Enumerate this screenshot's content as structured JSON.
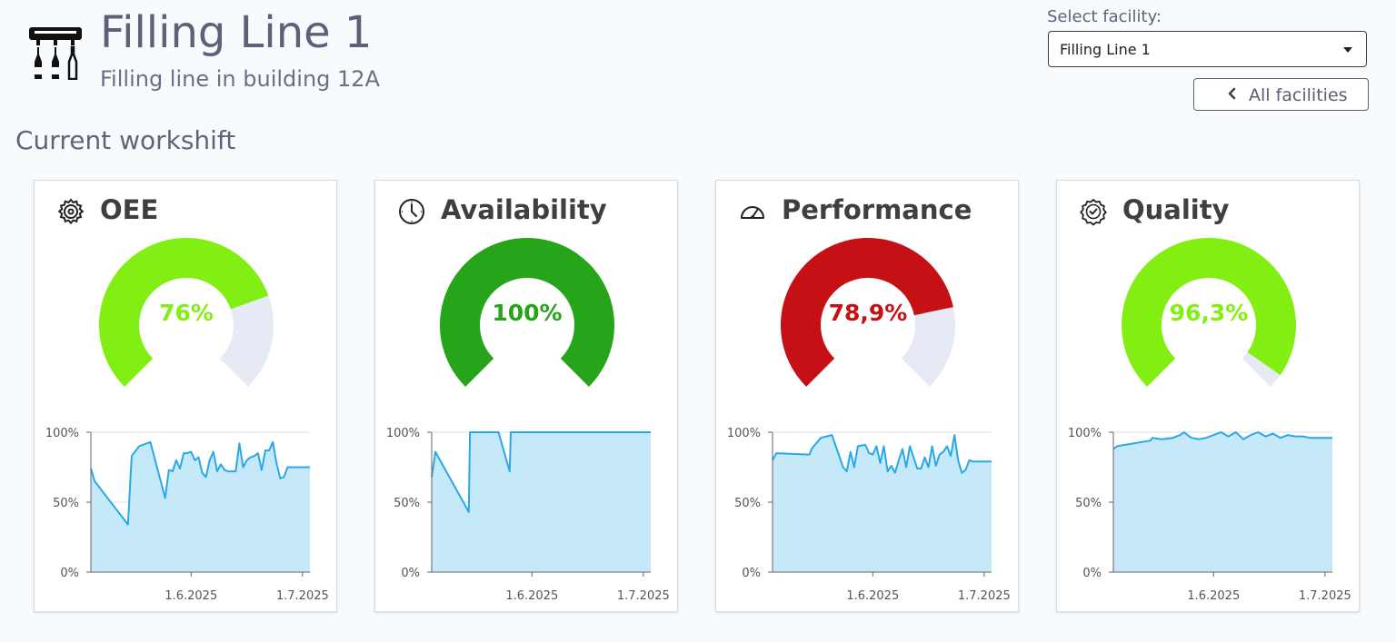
{
  "header": {
    "title": "Filling Line 1",
    "subtitle": "Filling line in building 12A",
    "icon": "filling-line-icon"
  },
  "facility_select": {
    "label": "Select facility:",
    "value": "Filling Line 1"
  },
  "back_button": {
    "label": "All facilities",
    "icon": "chevron-left-icon"
  },
  "section": {
    "title": "Current workshift"
  },
  "cards": [
    {
      "title": "OEE",
      "icon": "gear-icon",
      "value_text": "76%",
      "value": 0.76,
      "color": "#82ef14",
      "track": "#e5eaf5"
    },
    {
      "title": "Availability",
      "icon": "clock-icon",
      "value_text": "100%",
      "value": 1.0,
      "color": "#26a41a",
      "track": "#e5eaf5"
    },
    {
      "title": "Performance",
      "icon": "speedometer-icon",
      "value_text": "78,9%",
      "value": 0.789,
      "color": "#c51015",
      "track": "#e5eaf5"
    },
    {
      "title": "Quality",
      "icon": "badge-check-icon",
      "value_text": "96,3%",
      "value": 0.963,
      "color": "#83ee12",
      "track": "#e5eaf5"
    }
  ],
  "chart_data": [
    {
      "type": "area",
      "title": "OEE",
      "y_ticks": [
        "100%",
        "50%",
        "0%"
      ],
      "x_ticks": [
        {
          "label": "1.6.2025",
          "x": 28
        },
        {
          "label": "1.7.2025",
          "x": 58
        }
      ],
      "ylim": [
        0,
        100
      ],
      "xlim": [
        1,
        60
      ],
      "line_color": "#29a8e8",
      "fill_color": "#c6e9fa",
      "x": [
        1,
        2,
        11,
        12,
        14,
        17,
        21,
        22,
        23,
        24,
        25,
        26,
        27,
        28,
        29,
        30,
        31,
        32,
        33,
        34,
        35,
        36,
        37,
        38,
        39,
        40,
        41,
        42,
        43,
        44,
        45,
        46,
        47,
        48,
        49,
        50,
        51,
        52,
        53,
        54,
        55,
        56,
        57,
        58,
        59,
        60
      ],
      "y": [
        74,
        65,
        34,
        83,
        90,
        93,
        53,
        73,
        72,
        80,
        74,
        85,
        85,
        86,
        80,
        82,
        71,
        68,
        80,
        86,
        72,
        77,
        73,
        72,
        72,
        72,
        92,
        75,
        80,
        82,
        83,
        85,
        73,
        87,
        87,
        93,
        78,
        67,
        68,
        75,
        75,
        75,
        75,
        75,
        75,
        75
      ]
    },
    {
      "type": "area",
      "title": "Availability",
      "y_ticks": [
        "100%",
        "50%",
        "0%"
      ],
      "x_ticks": [
        {
          "label": "1.6.2025",
          "x": 28
        },
        {
          "label": "1.7.2025",
          "x": 58
        }
      ],
      "ylim": [
        0,
        100
      ],
      "xlim": [
        1,
        60
      ],
      "line_color": "#29a8e8",
      "fill_color": "#c6e9fa",
      "x": [
        1,
        2,
        11,
        11.3,
        19,
        22,
        22.3,
        60
      ],
      "y": [
        68,
        86,
        43,
        100,
        100,
        72,
        100,
        100
      ]
    },
    {
      "type": "area",
      "title": "Performance",
      "y_ticks": [
        "100%",
        "50%",
        "0%"
      ],
      "x_ticks": [
        {
          "label": "1.6.2025",
          "x": 28
        },
        {
          "label": "1.7.2025",
          "x": 58
        }
      ],
      "ylim": [
        0,
        100
      ],
      "xlim": [
        1,
        60
      ],
      "line_color": "#29a8e8",
      "fill_color": "#c6e9fa",
      "x": [
        1,
        2,
        11,
        11.5,
        14,
        17,
        20,
        21,
        22,
        23,
        24,
        26,
        27,
        28,
        29,
        30,
        31,
        32,
        33,
        34,
        35,
        36,
        37,
        38,
        40,
        41,
        42,
        43,
        44,
        45,
        46,
        47,
        48,
        49,
        50,
        51,
        52,
        53,
        54,
        55,
        56,
        57,
        58,
        59,
        60
      ],
      "y": [
        80,
        85,
        84,
        88,
        96,
        98,
        75,
        72,
        86,
        75,
        90,
        91,
        85,
        84,
        90,
        78,
        90,
        72,
        76,
        71,
        80,
        88,
        75,
        90,
        74,
        74,
        82,
        75,
        90,
        76,
        84,
        86,
        90,
        83,
        98,
        80,
        71,
        73,
        80,
        79,
        79,
        79,
        79,
        79,
        79
      ]
    },
    {
      "type": "area",
      "title": "Quality",
      "y_ticks": [
        "100%",
        "50%",
        "0%"
      ],
      "x_ticks": [
        {
          "label": "1.6.2025",
          "x": 28
        },
        {
          "label": "1.7.2025",
          "x": 58
        }
      ],
      "ylim": [
        0,
        100
      ],
      "xlim": [
        1,
        60
      ],
      "line_color": "#29a8e8",
      "fill_color": "#c6e9fa",
      "x": [
        1,
        2,
        11,
        11.5,
        14,
        17,
        19,
        20,
        22,
        24,
        26,
        28,
        30,
        32,
        34,
        36,
        38,
        40,
        42,
        44,
        46,
        48,
        50,
        52,
        54,
        56,
        58,
        60
      ],
      "y": [
        88,
        90,
        94,
        96,
        95,
        96,
        98,
        100,
        96,
        95,
        96,
        98,
        100,
        97,
        100,
        95,
        98,
        100,
        97,
        99,
        96,
        98,
        97,
        97,
        96,
        96,
        96,
        96
      ]
    }
  ]
}
